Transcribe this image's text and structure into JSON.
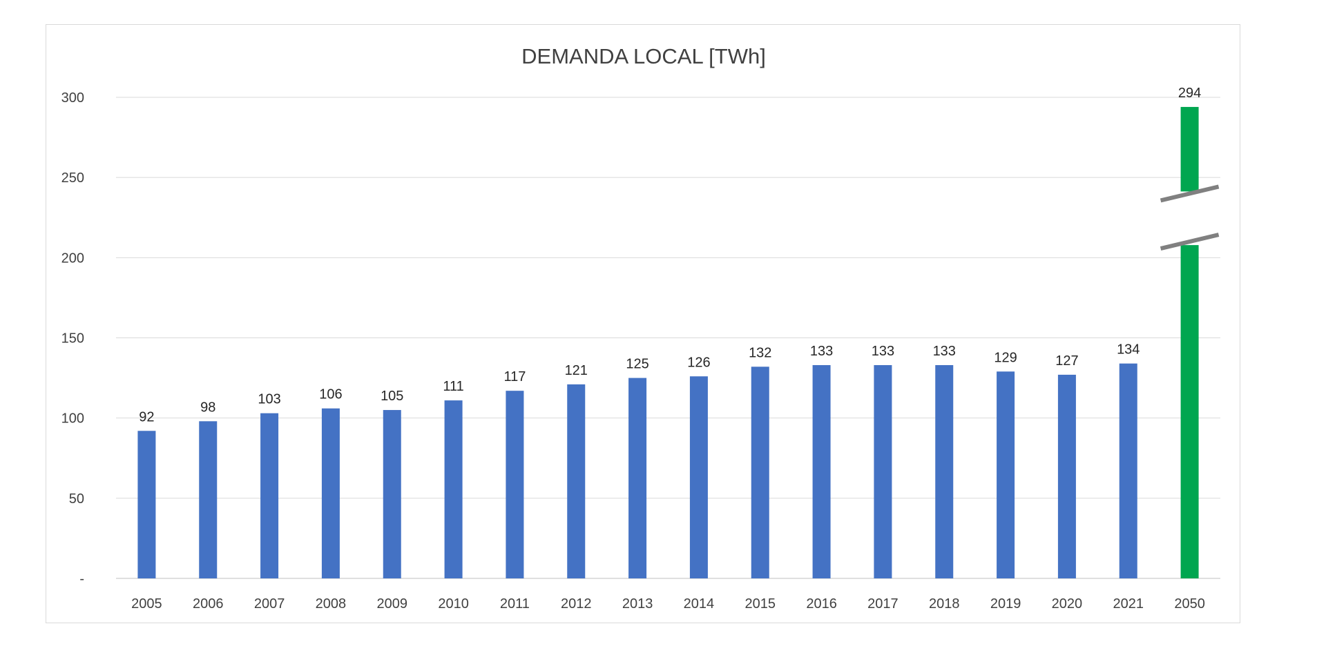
{
  "chart_data": {
    "type": "bar",
    "title": "DEMANDA LOCAL [TWh]",
    "xlabel": "",
    "ylabel": "",
    "categories": [
      "2005",
      "2006",
      "2007",
      "2008",
      "2009",
      "2010",
      "2011",
      "2012",
      "2013",
      "2014",
      "2015",
      "2016",
      "2017",
      "2018",
      "2019",
      "2020",
      "2021",
      "2050"
    ],
    "values": [
      92,
      98,
      103,
      106,
      105,
      111,
      117,
      121,
      125,
      126,
      132,
      133,
      133,
      133,
      129,
      127,
      134,
      294
    ],
    "data_labels": [
      "92",
      "98",
      "103",
      "106",
      "105",
      "111",
      "117",
      "121",
      "125",
      "126",
      "132",
      "133",
      "133",
      "133",
      "129",
      "127",
      "134",
      "294"
    ],
    "ylim": [
      0,
      300
    ],
    "y_ticks": [
      {
        "value": 0,
        "label": "-"
      },
      {
        "value": 50,
        "label": "50"
      },
      {
        "value": 100,
        "label": "100"
      },
      {
        "value": 150,
        "label": "150"
      },
      {
        "value": 200,
        "label": "200"
      },
      {
        "value": 250,
        "label": "250"
      },
      {
        "value": 300,
        "label": "300"
      }
    ],
    "grid": true,
    "legend": "none",
    "axis_break": {
      "category": "2050",
      "between": [
        210,
        240
      ]
    },
    "colors": {
      "historical": "#4472c4",
      "projection": "#00a650",
      "grid": "#d9d9d9",
      "axis": "#bfbfbf",
      "break_mark": "#808080"
    }
  }
}
